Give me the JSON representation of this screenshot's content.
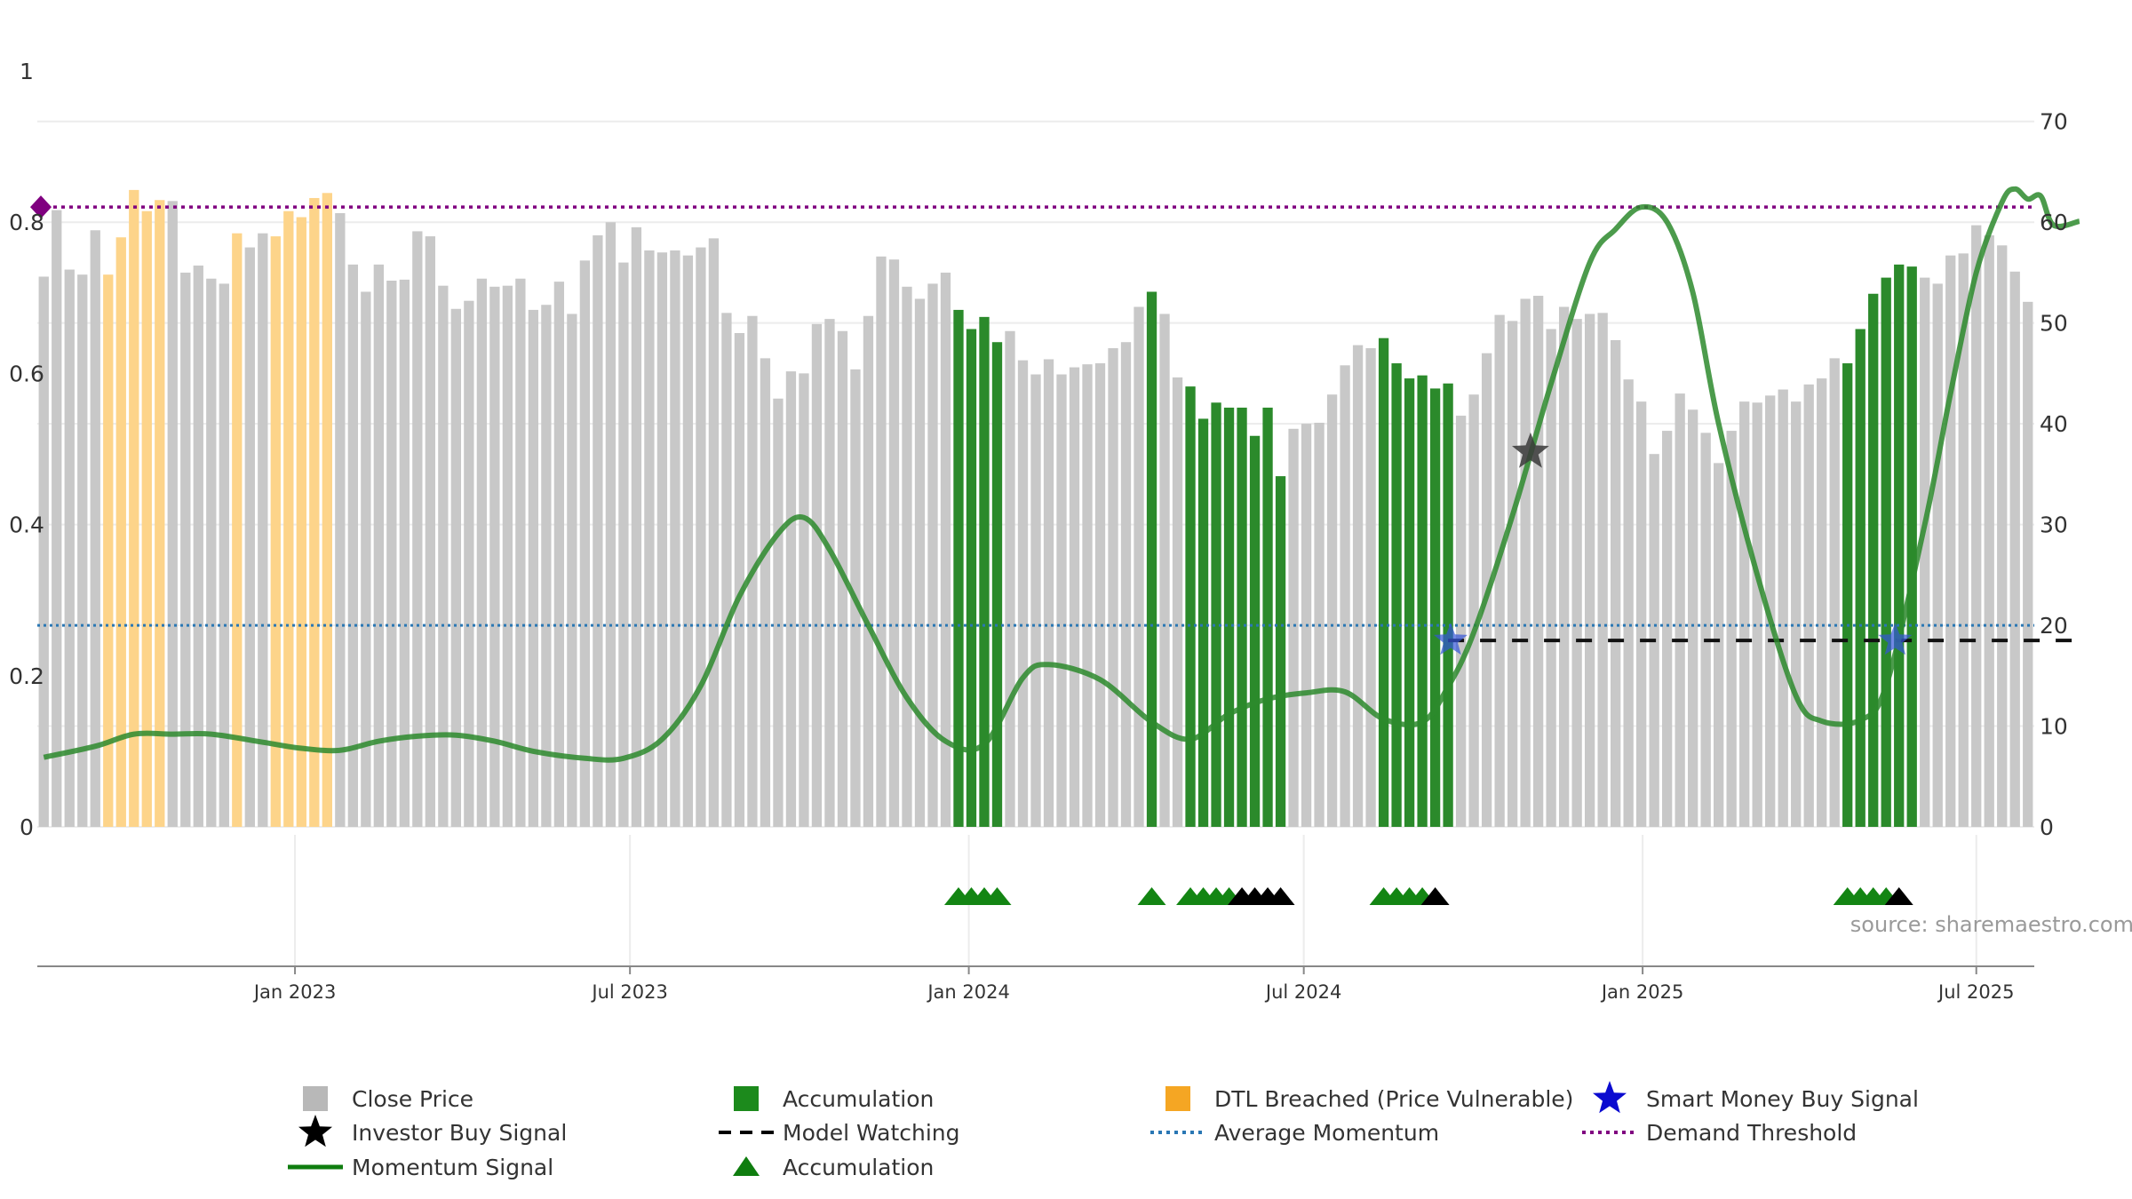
{
  "chart_data": {
    "type": "bar",
    "source_label": "source: sharemaestro.com",
    "left_axis": {
      "ticks": [
        "0",
        "0.2",
        "0.4",
        "0.6",
        "0.8",
        "1"
      ],
      "ylim": [
        0,
        1
      ]
    },
    "right_axis": {
      "ticks": [
        "0",
        "10",
        "20",
        "30",
        "40",
        "50",
        "60",
        "70"
      ],
      "ylim": [
        0,
        75
      ]
    },
    "x_ticks": [
      {
        "label": "Jan 2023",
        "week": 19.5
      },
      {
        "label": "Jul 2023",
        "week": 45.5
      },
      {
        "label": "Jan 2024",
        "week": 71.8
      },
      {
        "label": "Jul 2024",
        "week": 97.8
      },
      {
        "label": "Jan 2025",
        "week": 124.1
      },
      {
        "label": "Jul 2025",
        "week": 150
      }
    ],
    "close_price": [
      54.6,
      61.2,
      55.3,
      54.8,
      59.2,
      54.8,
      58.5,
      63.2,
      61.1,
      62.2,
      62.1,
      55.0,
      55.7,
      54.4,
      53.9,
      58.9,
      57.5,
      58.9,
      58.6,
      61.1,
      60.5,
      62.4,
      62.9,
      60.9,
      55.8,
      53.1,
      55.8,
      54.2,
      54.3,
      59.1,
      58.6,
      53.7,
      51.4,
      52.2,
      54.4,
      53.6,
      53.7,
      54.4,
      51.3,
      51.8,
      54.1,
      50.9,
      56.2,
      58.7,
      60.0,
      56.0,
      59.5,
      57.2,
      57.0,
      57.2,
      56.7,
      57.5,
      58.4,
      51.0,
      49.0,
      50.7,
      46.5,
      42.5,
      45.2,
      45.0,
      49.9,
      50.4,
      49.2,
      45.4,
      50.7,
      56.6,
      56.3,
      53.6,
      52.4,
      53.9,
      55.0,
      51.3,
      49.4,
      50.6,
      48.1,
      49.2,
      46.3,
      44.9,
      46.4,
      44.9,
      45.6,
      45.9,
      46.0,
      47.5,
      48.1,
      51.6,
      53.1,
      50.9,
      44.6,
      43.7,
      40.5,
      42.1,
      41.6,
      41.6,
      38.8,
      41.6,
      34.8,
      39.5,
      40.0,
      40.1,
      42.9,
      45.8,
      47.8,
      47.5,
      48.5,
      46.0,
      44.5,
      44.8,
      43.5,
      44.0,
      40.8,
      42.9,
      47.0,
      50.8,
      50.2,
      52.4,
      52.7,
      49.4,
      51.6,
      50.4,
      50.9,
      51.0,
      48.3,
      44.4,
      42.2,
      37.0,
      39.3,
      43.0,
      41.4,
      39.1,
      36.1,
      39.3,
      42.2,
      42.1,
      42.8,
      43.4,
      42.2,
      43.9,
      44.5,
      46.5,
      46.0,
      49.4,
      52.9,
      54.5,
      55.8,
      55.6,
      54.5,
      53.9,
      56.7,
      56.9,
      59.7,
      58.7,
      57.7,
      55.1,
      52.1
    ],
    "accumulation_weeks": [
      71,
      72,
      73,
      74,
      86,
      89,
      90,
      91,
      92,
      93,
      94,
      95,
      96,
      104,
      105,
      106,
      107,
      108,
      109,
      140,
      141,
      142,
      143,
      144,
      145
    ],
    "dtl_breached_weeks": [
      5,
      6,
      7,
      8,
      9,
      15,
      18,
      19,
      20,
      21,
      22
    ],
    "momentum": [
      [
        0,
        6.9
      ],
      [
        4,
        8
      ],
      [
        7,
        9.2
      ],
      [
        10,
        9.2
      ],
      [
        13,
        9.2
      ],
      [
        17,
        8.4
      ],
      [
        20,
        7.8
      ],
      [
        23,
        7.6
      ],
      [
        26,
        8.5
      ],
      [
        29,
        9.0
      ],
      [
        32,
        9.1
      ],
      [
        35,
        8.5
      ],
      [
        38,
        7.5
      ],
      [
        42,
        6.8
      ],
      [
        45,
        6.8
      ],
      [
        48,
        8.7
      ],
      [
        51,
        14
      ],
      [
        54,
        22.9
      ],
      [
        57,
        29.1
      ],
      [
        59,
        30.7
      ],
      [
        61,
        27.5
      ],
      [
        64,
        20
      ],
      [
        67,
        12.8
      ],
      [
        70,
        8.5
      ],
      [
        73,
        8.2
      ],
      [
        76,
        14.8
      ],
      [
        78,
        16.1
      ],
      [
        82,
        14.6
      ],
      [
        86,
        10.4
      ],
      [
        89,
        8.7
      ],
      [
        92,
        11.2
      ],
      [
        95,
        12.7
      ],
      [
        98,
        13.3
      ],
      [
        101,
        13.4
      ],
      [
        104,
        10.7
      ],
      [
        107,
        10.4
      ],
      [
        109,
        13.9
      ],
      [
        111,
        19.3
      ],
      [
        114,
        30.9
      ],
      [
        117,
        44
      ],
      [
        120,
        56
      ],
      [
        122,
        59.3
      ],
      [
        124,
        61.5
      ],
      [
        126,
        60
      ],
      [
        128,
        53
      ],
      [
        130,
        40
      ],
      [
        133,
        25
      ],
      [
        136,
        13
      ],
      [
        138,
        10.5
      ],
      [
        141,
        10.6
      ],
      [
        143,
        14
      ],
      [
        146,
        30
      ],
      [
        148,
        43
      ],
      [
        150,
        55
      ],
      [
        152,
        62
      ],
      [
        153,
        63.3
      ],
      [
        154,
        62.3
      ],
      [
        155,
        62.6
      ],
      [
        156,
        59.7
      ],
      [
        158,
        60.1
      ]
    ],
    "investor_buy_signal": [
      {
        "week": 115.4,
        "value": 37.2
      }
    ],
    "smart_money_buy_signal": [
      {
        "week": 109.2,
        "value": 18.5
      },
      {
        "week": 143.7,
        "value": 18.5
      }
    ],
    "model_watching": {
      "from_week": 109,
      "to_week": 158,
      "value": 18.5
    },
    "average_momentum": 20,
    "demand_threshold": 61.5,
    "accumulation_markers": {
      "green": [
        71,
        72,
        73,
        74,
        86,
        89,
        90,
        91,
        92,
        104,
        105,
        106,
        107,
        140,
        141,
        142,
        143
      ],
      "black": [
        93,
        94,
        95,
        96,
        108,
        144
      ]
    },
    "legend": [
      {
        "label": "Close Price",
        "symbol": "square",
        "color": "#b8b8b8"
      },
      {
        "label": "Accumulation",
        "symbol": "square",
        "color": "#1c8a1c"
      },
      {
        "label": "DTL Breached (Price Vulnerable)",
        "symbol": "square",
        "color": "#f5a623"
      },
      {
        "label": "Smart Money Buy Signal",
        "symbol": "star",
        "color": "#0b0bd0"
      },
      {
        "label": "Investor Buy Signal",
        "symbol": "star",
        "color": "#000000"
      },
      {
        "label": "Model Watching",
        "symbol": "dash",
        "color": "#000000"
      },
      {
        "label": "Average Momentum",
        "symbol": "dot",
        "color": "#2a77b4"
      },
      {
        "label": "Demand Threshold",
        "symbol": "dot",
        "color": "#800080"
      },
      {
        "label": "Momentum Signal",
        "symbol": "line",
        "color": "#0f7d0f"
      },
      {
        "label": "Accumulation",
        "symbol": "triangle",
        "color": "#0f7d0f"
      }
    ],
    "colors": {
      "close": "#c8c8c8",
      "accum": "#2b8a2b",
      "dtl": "#fdd48a",
      "momentum": "#2d8a2d",
      "momentum_bright": "#0f7d0f",
      "avg": "#2a77b4",
      "threshold": "#800080",
      "star_dark": "#3a3a3a",
      "star_blue": "#3456d8",
      "grid": "#ececec",
      "axis": "#888888"
    }
  }
}
